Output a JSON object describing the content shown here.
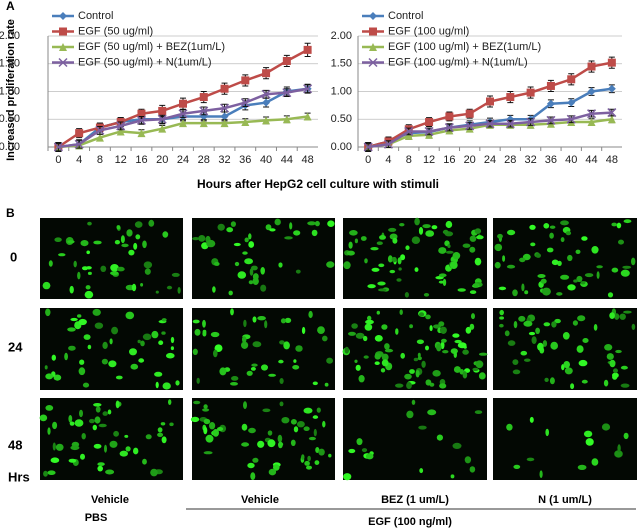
{
  "panel_a_label": "A",
  "chart_data": [
    {
      "type": "line",
      "ylabel": "Increased proliferation rate",
      "xlabel": "Hours after HepG2 cell culture with stimuli",
      "categories": [
        "0",
        "4",
        "8",
        "12",
        "16",
        "20",
        "24",
        "28",
        "32",
        "36",
        "40",
        "44",
        "48"
      ],
      "ylim": [
        0,
        2
      ],
      "yticks": [
        {
          "value": 0,
          "label": "0.00"
        },
        {
          "value": 0.5,
          "label": "0.50"
        },
        {
          "value": 1,
          "label": "1.00"
        },
        {
          "value": 1.5,
          "label": "1.50"
        },
        {
          "value": 2,
          "label": "2.00"
        }
      ],
      "grid": true,
      "legend": "upper left",
      "series": [
        {
          "name": "Control",
          "color": "#4a7ebb",
          "marker": "diamond",
          "values": [
            0,
            0.05,
            0.35,
            0.45,
            0.5,
            0.5,
            0.55,
            0.55,
            0.55,
            0.75,
            0.8,
            1.0,
            1.05
          ],
          "errors": [
            0.08,
            0.08,
            0.08,
            0.08,
            0.08,
            0.08,
            0.08,
            0.08,
            0.08,
            0.08,
            0.08,
            0.08,
            0.08
          ]
        },
        {
          "name": "EGF (50 ug/ml)",
          "color": "#be4b48",
          "marker": "square",
          "values": [
            0,
            0.25,
            0.35,
            0.45,
            0.6,
            0.65,
            0.78,
            0.9,
            1.05,
            1.2,
            1.33,
            1.55,
            1.75
          ],
          "errors": [
            0.08,
            0.08,
            0.08,
            0.08,
            0.08,
            0.1,
            0.1,
            0.1,
            0.1,
            0.1,
            0.1,
            0.1,
            0.12
          ]
        },
        {
          "name": "EGF (50 ug/ml) + BEZ(1um/L)",
          "color": "#98b954",
          "marker": "triangle",
          "values": [
            0,
            0.03,
            0.17,
            0.28,
            0.25,
            0.33,
            0.43,
            0.43,
            0.43,
            0.45,
            0.48,
            0.5,
            0.55
          ],
          "errors": [
            0.06,
            0.06,
            0.06,
            0.06,
            0.06,
            0.06,
            0.06,
            0.06,
            0.06,
            0.06,
            0.06,
            0.06,
            0.06
          ]
        },
        {
          "name": "EGF (50 ug/ml) + N(1um/L)",
          "color": "#7d60a0",
          "marker": "x",
          "values": [
            0,
            0.05,
            0.3,
            0.38,
            0.48,
            0.5,
            0.6,
            0.65,
            0.7,
            0.8,
            0.95,
            0.98,
            1.05
          ],
          "errors": [
            0.07,
            0.07,
            0.07,
            0.07,
            0.07,
            0.07,
            0.07,
            0.07,
            0.07,
            0.07,
            0.07,
            0.07,
            0.07
          ]
        }
      ]
    },
    {
      "type": "line",
      "categories": [
        "0",
        "4",
        "8",
        "12",
        "16",
        "20",
        "24",
        "28",
        "32",
        "36",
        "40",
        "44",
        "48"
      ],
      "ylim": [
        0,
        2
      ],
      "yticks": [
        {
          "value": 0,
          "label": "0.00"
        },
        {
          "value": 0.5,
          "label": "0.50"
        },
        {
          "value": 1,
          "label": "1.00"
        },
        {
          "value": 1.5,
          "label": "1.50"
        },
        {
          "value": 2,
          "label": "2.00"
        }
      ],
      "grid": true,
      "legend": "upper left",
      "series": [
        {
          "name": "Control",
          "color": "#4a7ebb",
          "marker": "diamond",
          "values": [
            0,
            0.1,
            0.25,
            0.27,
            0.35,
            0.4,
            0.45,
            0.5,
            0.5,
            0.78,
            0.8,
            1.0,
            1.05
          ],
          "errors": [
            0.07,
            0.07,
            0.07,
            0.07,
            0.07,
            0.07,
            0.07,
            0.07,
            0.07,
            0.07,
            0.07,
            0.07,
            0.07
          ]
        },
        {
          "name": "EGF (100 ug/ml)",
          "color": "#be4b48",
          "marker": "square",
          "values": [
            0,
            0.1,
            0.32,
            0.45,
            0.55,
            0.6,
            0.82,
            0.9,
            0.98,
            1.1,
            1.22,
            1.45,
            1.52
          ],
          "errors": [
            0.08,
            0.08,
            0.08,
            0.08,
            0.08,
            0.08,
            0.1,
            0.1,
            0.1,
            0.1,
            0.1,
            0.1,
            0.1
          ]
        },
        {
          "name": "EGF (100 ug/ml) + BEZ(1um/L)",
          "color": "#98b954",
          "marker": "triangle",
          "values": [
            0,
            0.05,
            0.2,
            0.22,
            0.3,
            0.33,
            0.4,
            0.4,
            0.4,
            0.42,
            0.45,
            0.45,
            0.5
          ],
          "errors": [
            0.06,
            0.06,
            0.06,
            0.06,
            0.06,
            0.06,
            0.06,
            0.06,
            0.06,
            0.06,
            0.06,
            0.06,
            0.06
          ]
        },
        {
          "name": "EGF (100 ug/ml) + N(1um/L)",
          "color": "#7d60a0",
          "marker": "x",
          "values": [
            0,
            0.05,
            0.28,
            0.28,
            0.35,
            0.38,
            0.42,
            0.42,
            0.45,
            0.48,
            0.5,
            0.6,
            0.62
          ],
          "errors": [
            0.06,
            0.06,
            0.06,
            0.06,
            0.06,
            0.06,
            0.06,
            0.06,
            0.06,
            0.06,
            0.06,
            0.06,
            0.06
          ]
        }
      ]
    }
  ],
  "panel_b": {
    "label": "B",
    "row_labels": [
      "0",
      "24",
      "48"
    ],
    "unit_label": "Hrs",
    "column_labels": [
      "Vehicle",
      "Vehicle",
      "BEZ (1 um/L)",
      "N (1 um/L)"
    ],
    "control_label": "PBS",
    "group_label": "EGF (100 ng/ml)"
  }
}
